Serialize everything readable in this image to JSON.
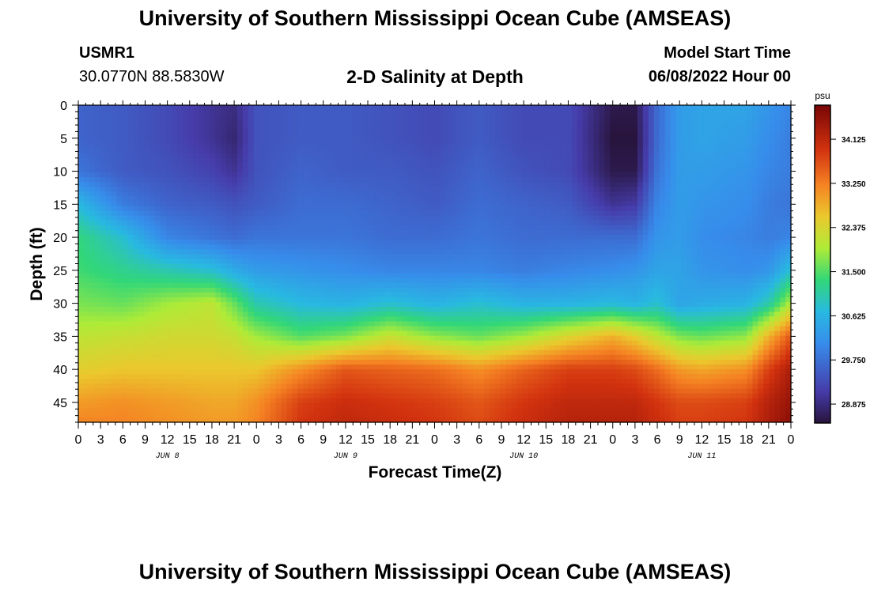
{
  "header": {
    "title": "University of Southern Mississippi Ocean Cube (AMSEAS)",
    "station": "USMR1",
    "coords": "30.0770N  88.5830W",
    "subtitle": "2-D Salinity at Depth",
    "start_label": "Model Start Time",
    "start_value": "06/08/2022 Hour 00",
    "footer_title": "University of Southern Mississippi Ocean Cube (AMSEAS)"
  },
  "chart_data": {
    "type": "heatmap",
    "title": "2-D Salinity at Depth",
    "xlabel": "Forecast Time(Z)",
    "ylabel": "Depth (ft)",
    "x_range_hours": [
      0,
      96
    ],
    "y_range_ft": [
      0,
      48
    ],
    "x_tick_labels": [
      "0",
      "3",
      "6",
      "9",
      "12",
      "15",
      "18",
      "21",
      "0",
      "3",
      "6",
      "9",
      "12",
      "15",
      "18",
      "21",
      "0",
      "3",
      "6",
      "9",
      "12",
      "15",
      "18",
      "21",
      "0",
      "3",
      "6",
      "9",
      "12",
      "15",
      "18",
      "21",
      "0"
    ],
    "day_labels": [
      {
        "text": "JUN 8",
        "hour": 12
      },
      {
        "text": "JUN 9",
        "hour": 36
      },
      {
        "text": "JUN 10",
        "hour": 60
      },
      {
        "text": "JUN 11",
        "hour": 84
      }
    ],
    "y_ticks": [
      0,
      5,
      10,
      15,
      20,
      25,
      30,
      35,
      40,
      45
    ],
    "colorbar": {
      "unit": "psu",
      "range": [
        28.5,
        34.8
      ],
      "tick_values": [
        28.875,
        29.75,
        30.625,
        31.5,
        32.375,
        33.25,
        34.125
      ],
      "tick_labels": [
        "28.875",
        "29.750",
        "30.625",
        "31.500",
        "32.375",
        "33.250",
        "34.125"
      ]
    },
    "time_hours": [
      0,
      6,
      12,
      18,
      21,
      24,
      30,
      36,
      42,
      48,
      54,
      60,
      66,
      72,
      75,
      78,
      81,
      84,
      90,
      93,
      96
    ],
    "depth_ft": [
      0,
      5,
      10,
      15,
      20,
      25,
      30,
      35,
      40,
      45,
      48
    ],
    "salinity_psu": [
      [
        29.6,
        29.5,
        29.3,
        29.0,
        28.9,
        29.4,
        29.5,
        29.5,
        29.4,
        29.3,
        29.5,
        29.3,
        29.3,
        28.6,
        28.6,
        29.7,
        30.3,
        30.4,
        30.4,
        30.2,
        30.0
      ],
      [
        29.6,
        29.5,
        29.3,
        29.0,
        28.8,
        29.4,
        29.5,
        29.5,
        29.4,
        29.3,
        29.5,
        29.3,
        29.3,
        28.5,
        28.5,
        29.7,
        30.3,
        30.4,
        30.3,
        30.1,
        29.9
      ],
      [
        29.8,
        29.5,
        29.4,
        29.2,
        29.0,
        29.4,
        29.6,
        29.5,
        29.5,
        29.4,
        29.6,
        29.4,
        29.3,
        28.6,
        28.6,
        29.8,
        30.3,
        30.3,
        30.2,
        30.0,
        29.9
      ],
      [
        30.7,
        29.9,
        29.6,
        29.5,
        29.4,
        29.5,
        29.7,
        29.7,
        29.6,
        29.5,
        29.7,
        29.6,
        29.5,
        29.0,
        29.1,
        30.0,
        30.3,
        30.2,
        30.1,
        29.9,
        29.8
      ],
      [
        31.3,
        30.8,
        30.0,
        29.8,
        29.7,
        29.8,
        29.8,
        29.8,
        29.7,
        29.7,
        29.8,
        29.7,
        29.7,
        29.7,
        29.7,
        30.2,
        30.3,
        30.1,
        30.0,
        29.9,
        30.0
      ],
      [
        31.4,
        31.2,
        31.0,
        30.8,
        30.5,
        30.3,
        30.2,
        30.1,
        30.0,
        30.0,
        30.0,
        29.9,
        30.0,
        30.1,
        30.2,
        30.4,
        30.4,
        30.2,
        30.1,
        30.2,
        30.8
      ],
      [
        31.7,
        31.6,
        31.9,
        32.1,
        31.6,
        31.0,
        30.7,
        30.6,
        30.8,
        30.6,
        30.8,
        30.6,
        30.6,
        30.7,
        30.6,
        30.8,
        30.4,
        30.5,
        30.6,
        31.0,
        32.0
      ],
      [
        32.1,
        32.2,
        32.3,
        32.3,
        32.2,
        31.9,
        31.5,
        31.7,
        32.2,
        31.8,
        31.6,
        31.9,
        32.4,
        32.8,
        32.5,
        32.1,
        31.7,
        31.6,
        31.8,
        32.8,
        33.6
      ],
      [
        32.5,
        32.6,
        32.6,
        32.6,
        32.6,
        32.6,
        33.1,
        33.6,
        33.5,
        33.4,
        33.1,
        33.5,
        33.8,
        33.8,
        33.7,
        33.4,
        33.0,
        32.9,
        33.1,
        33.8,
        34.3
      ],
      [
        33.0,
        33.1,
        33.0,
        32.9,
        32.9,
        33.1,
        33.8,
        34.0,
        33.9,
        33.8,
        33.6,
        33.9,
        34.1,
        34.1,
        34.1,
        33.9,
        33.7,
        33.7,
        33.8,
        34.2,
        34.5
      ],
      [
        33.2,
        33.2,
        33.1,
        33.0,
        33.0,
        33.2,
        33.9,
        34.1,
        34.0,
        33.9,
        33.7,
        34.0,
        34.2,
        34.2,
        34.2,
        34.0,
        33.8,
        33.8,
        33.9,
        34.3,
        34.6
      ]
    ]
  }
}
